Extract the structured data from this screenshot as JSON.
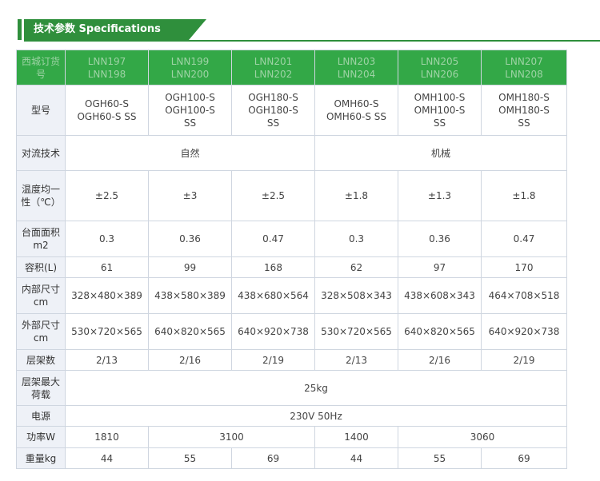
{
  "section": {
    "title": "技术参数 Specifications"
  },
  "table": {
    "corner": "西城订货号",
    "models": [
      [
        "LNN197",
        "LNN198"
      ],
      [
        "LNN199",
        "LNN200"
      ],
      [
        "LNN201",
        "LNN202"
      ],
      [
        "LNN203",
        "LNN204"
      ],
      [
        "LNN205",
        "LNN206"
      ],
      [
        "LNN207",
        "LNN208"
      ]
    ],
    "rows": {
      "type": {
        "label": "型号",
        "values": [
          "OGH60-S\nOGH60-S SS",
          "OGH100-S\nOGH100-S\nSS",
          "OGH180-S\nOGH180-S\nSS",
          "OMH60-S\nOMH60-S SS",
          "OMH100-S\nOMH100-S\nSS",
          "OMH180-S\nOMH180-S\nSS"
        ]
      },
      "convection": {
        "label": "对流技术",
        "values": [
          "自然",
          "机械"
        ]
      },
      "uniformity": {
        "label": "温度均一性（℃）",
        "values": [
          "±2.5",
          "±3",
          "±2.5",
          "±1.8",
          "±1.3",
          "±1.8"
        ]
      },
      "area": {
        "label": "台面面积m2",
        "values": [
          "0.3",
          "0.36",
          "0.47",
          "0.3",
          "0.36",
          "0.47"
        ]
      },
      "volume": {
        "label": "容积(L)",
        "values": [
          "61",
          "99",
          "168",
          "62",
          "97",
          "170"
        ]
      },
      "inner": {
        "label": "内部尺寸cm",
        "values": [
          "328×480×389",
          "438×580×389",
          "438×680×564",
          "328×508×343",
          "438×608×343",
          "464×708×518"
        ]
      },
      "outer": {
        "label": "外部尺寸cm",
        "values": [
          "530×720×565",
          "640×820×565",
          "640×920×738",
          "530×720×565",
          "640×820×565",
          "640×920×738"
        ]
      },
      "shelves": {
        "label": "层架数",
        "values": [
          "2/13",
          "2/16",
          "2/19",
          "2/13",
          "2/16",
          "2/19"
        ]
      },
      "maxload": {
        "label": "层架最大荷载",
        "value": "25kg"
      },
      "power": {
        "label": "电源",
        "value": "230V 50Hz"
      },
      "wattage": {
        "label": "功率W",
        "values": [
          "1810",
          "3100",
          "1400",
          "3060"
        ]
      },
      "weight": {
        "label": "重量kg",
        "values": [
          "44",
          "55",
          "69",
          "44",
          "55",
          "69"
        ]
      }
    }
  }
}
